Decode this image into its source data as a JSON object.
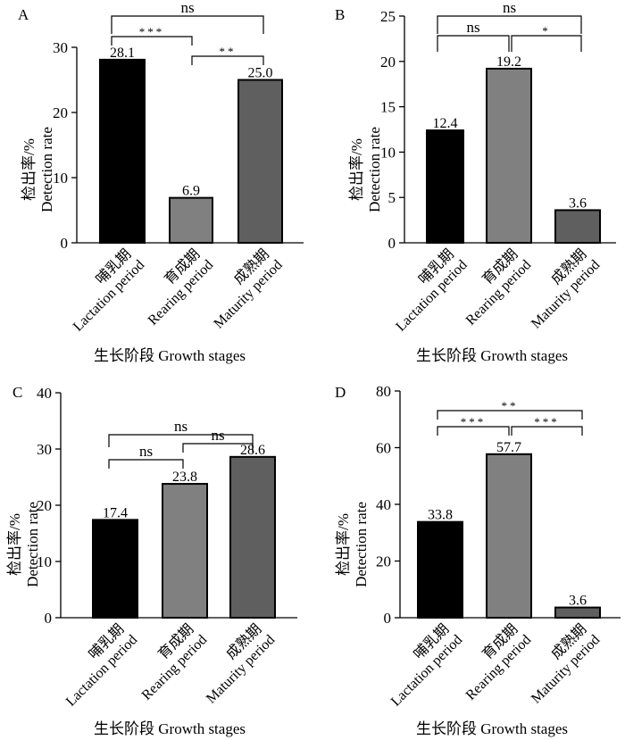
{
  "chart_data": [
    {
      "type": "bar",
      "panel": "A",
      "categories": [
        [
          "哺乳期",
          "Lactation period"
        ],
        [
          "育成期",
          "Rearing period"
        ],
        [
          "成熟期",
          "Maturity period"
        ]
      ],
      "values": [
        28.1,
        6.9,
        25.0
      ],
      "value_labels": [
        "28.1",
        "6.9",
        "25.0"
      ],
      "colors": [
        "#000000",
        "#808080",
        "#5f5f5f"
      ],
      "ylim": [
        0,
        30
      ],
      "yticks": [
        0,
        10,
        20,
        30
      ],
      "ylabel": [
        "检出率/%",
        "Detection rate"
      ],
      "xlabel": "生长阶段 Growth stages",
      "significance": [
        {
          "pair": [
            0,
            2
          ],
          "label": "ns"
        },
        {
          "pair": [
            0,
            1
          ],
          "label": "***"
        },
        {
          "pair": [
            1,
            2
          ],
          "label": "**"
        }
      ]
    },
    {
      "type": "bar",
      "panel": "B",
      "categories": [
        [
          "哺乳期",
          "Lactation period"
        ],
        [
          "育成期",
          "Rearing period"
        ],
        [
          "成熟期",
          "Maturity period"
        ]
      ],
      "values": [
        12.4,
        19.2,
        3.6
      ],
      "value_labels": [
        "12.4",
        "19.2",
        "3.6"
      ],
      "colors": [
        "#000000",
        "#808080",
        "#5f5f5f"
      ],
      "ylim": [
        0,
        25
      ],
      "yticks": [
        0,
        5,
        10,
        15,
        20,
        25
      ],
      "ylabel": [
        "检出率/%",
        "Detection rate"
      ],
      "xlabel": "生长阶段 Growth stages",
      "significance": [
        {
          "pair": [
            0,
            2
          ],
          "label": "ns"
        },
        {
          "pair": [
            0,
            1
          ],
          "label": "ns"
        },
        {
          "pair": [
            1,
            2
          ],
          "label": "*"
        }
      ]
    },
    {
      "type": "bar",
      "panel": "C",
      "categories": [
        [
          "哺乳期",
          "Lactation period"
        ],
        [
          "育成期",
          "Rearing period"
        ],
        [
          "成熟期",
          "Maturity period"
        ]
      ],
      "values": [
        17.4,
        23.8,
        28.6
      ],
      "value_labels": [
        "17.4",
        "23.8",
        "28.6"
      ],
      "colors": [
        "#000000",
        "#808080",
        "#5f5f5f"
      ],
      "ylim": [
        0,
        40
      ],
      "yticks": [
        0,
        10,
        20,
        30,
        40
      ],
      "ylabel": [
        "检出率/%",
        "Detection rate"
      ],
      "xlabel": "生长阶段 Growth stages",
      "significance": [
        {
          "pair": [
            0,
            2
          ],
          "label": "ns"
        },
        {
          "pair": [
            0,
            1
          ],
          "label": "ns"
        },
        {
          "pair": [
            1,
            2
          ],
          "label": "ns"
        }
      ]
    },
    {
      "type": "bar",
      "panel": "D",
      "categories": [
        [
          "哺乳期",
          "Lactation period"
        ],
        [
          "育成期",
          "Rearing period"
        ],
        [
          "成熟期",
          "Maturity period"
        ]
      ],
      "values": [
        33.8,
        57.7,
        3.6
      ],
      "value_labels": [
        "33.8",
        "57.7",
        "3.6"
      ],
      "colors": [
        "#000000",
        "#808080",
        "#5f5f5f"
      ],
      "ylim": [
        0,
        80
      ],
      "yticks": [
        0,
        20,
        40,
        60,
        80
      ],
      "ylabel": [
        "检出率/%",
        "Detection rate"
      ],
      "xlabel": "生长阶段 Growth stages",
      "significance": [
        {
          "pair": [
            0,
            2
          ],
          "label": "**"
        },
        {
          "pair": [
            0,
            1
          ],
          "label": "***"
        },
        {
          "pair": [
            1,
            2
          ],
          "label": "***"
        }
      ]
    }
  ]
}
